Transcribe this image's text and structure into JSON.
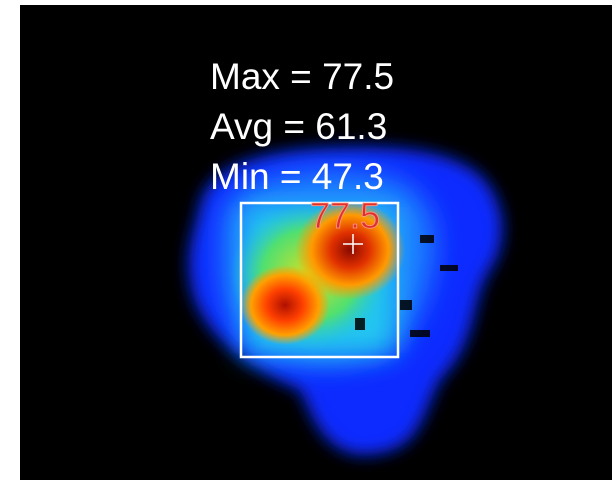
{
  "readout": {
    "max": "Max = 77.5",
    "avg": "Avg = 61.3",
    "min": "Min = 47.3"
  },
  "spot": {
    "label": "77.5"
  }
}
